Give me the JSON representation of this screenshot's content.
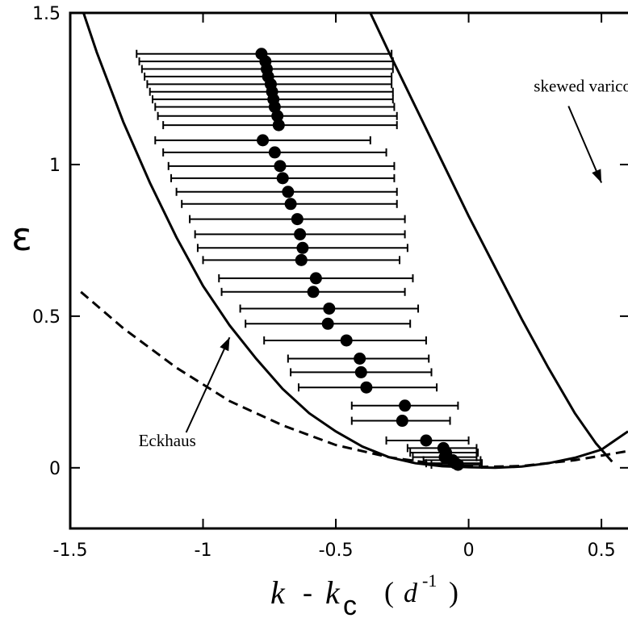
{
  "chart_data": {
    "type": "scatter",
    "xlabel_parts": {
      "k": "k",
      "dash": "-",
      "kc": "k",
      "c": "c",
      "paren_open": "(",
      "d": "d",
      "exp": "-1",
      "paren_close": ")"
    },
    "ylabel": "ε",
    "xlim": [
      -1.5,
      0.6
    ],
    "ylim": [
      -0.2,
      1.5
    ],
    "x_ticks": [
      {
        "value": -1.5,
        "label": "-1.5"
      },
      {
        "value": -1,
        "label": "-1"
      },
      {
        "value": -0.5,
        "label": "-0.5"
      },
      {
        "value": 0,
        "label": "0"
      },
      {
        "value": 0.5,
        "label": "0.5"
      }
    ],
    "y_ticks": [
      {
        "value": 0,
        "label": "0"
      },
      {
        "value": 0.5,
        "label": "0.5"
      },
      {
        "value": 1,
        "label": "1"
      },
      {
        "value": 1.5,
        "label": "1.5"
      }
    ],
    "points": [
      {
        "x": -0.78,
        "y": 1.365,
        "xmin": -1.25,
        "xmax": -0.29
      },
      {
        "x": -0.765,
        "y": 1.34,
        "xmin": -1.24,
        "xmax": -0.285
      },
      {
        "x": -0.76,
        "y": 1.315,
        "xmin": -1.23,
        "xmax": -0.285
      },
      {
        "x": -0.755,
        "y": 1.29,
        "xmin": -1.22,
        "xmax": -0.29
      },
      {
        "x": -0.745,
        "y": 1.265,
        "xmin": -1.21,
        "xmax": -0.29
      },
      {
        "x": -0.74,
        "y": 1.24,
        "xmin": -1.2,
        "xmax": -0.285
      },
      {
        "x": -0.735,
        "y": 1.215,
        "xmin": -1.19,
        "xmax": -0.285
      },
      {
        "x": -0.73,
        "y": 1.19,
        "xmin": -1.18,
        "xmax": -0.28
      },
      {
        "x": -0.72,
        "y": 1.16,
        "xmin": -1.17,
        "xmax": -0.27
      },
      {
        "x": -0.715,
        "y": 1.13,
        "xmin": -1.15,
        "xmax": -0.27
      },
      {
        "x": -0.775,
        "y": 1.08,
        "xmin": -1.18,
        "xmax": -0.37
      },
      {
        "x": -0.73,
        "y": 1.04,
        "xmin": -1.15,
        "xmax": -0.31
      },
      {
        "x": -0.71,
        "y": 0.995,
        "xmin": -1.13,
        "xmax": -0.28
      },
      {
        "x": -0.7,
        "y": 0.955,
        "xmin": -1.12,
        "xmax": -0.28
      },
      {
        "x": -0.68,
        "y": 0.91,
        "xmin": -1.1,
        "xmax": -0.27
      },
      {
        "x": -0.67,
        "y": 0.87,
        "xmin": -1.08,
        "xmax": -0.27
      },
      {
        "x": -0.645,
        "y": 0.82,
        "xmin": -1.05,
        "xmax": -0.24
      },
      {
        "x": -0.635,
        "y": 0.77,
        "xmin": -1.03,
        "xmax": -0.24
      },
      {
        "x": -0.625,
        "y": 0.725,
        "xmin": -1.02,
        "xmax": -0.23
      },
      {
        "x": -0.63,
        "y": 0.685,
        "xmin": -1.0,
        "xmax": -0.26
      },
      {
        "x": -0.575,
        "y": 0.625,
        "xmin": -0.94,
        "xmax": -0.21
      },
      {
        "x": -0.585,
        "y": 0.58,
        "xmin": -0.93,
        "xmax": -0.24
      },
      {
        "x": -0.525,
        "y": 0.525,
        "xmin": -0.86,
        "xmax": -0.19
      },
      {
        "x": -0.53,
        "y": 0.475,
        "xmin": -0.84,
        "xmax": -0.22
      },
      {
        "x": -0.46,
        "y": 0.42,
        "xmin": -0.77,
        "xmax": -0.16
      },
      {
        "x": -0.41,
        "y": 0.36,
        "xmin": -0.68,
        "xmax": -0.15
      },
      {
        "x": -0.405,
        "y": 0.315,
        "xmin": -0.67,
        "xmax": -0.14
      },
      {
        "x": -0.385,
        "y": 0.265,
        "xmin": -0.64,
        "xmax": -0.12
      },
      {
        "x": -0.24,
        "y": 0.205,
        "xmin": -0.44,
        "xmax": -0.04
      },
      {
        "x": -0.25,
        "y": 0.155,
        "xmin": -0.44,
        "xmax": -0.07
      },
      {
        "x": -0.16,
        "y": 0.09,
        "xmin": -0.31,
        "xmax": 0.0
      },
      {
        "x": -0.095,
        "y": 0.065,
        "xmin": -0.23,
        "xmax": 0.03
      },
      {
        "x": -0.085,
        "y": 0.05,
        "xmin": -0.22,
        "xmax": 0.035
      },
      {
        "x": -0.09,
        "y": 0.035,
        "xmin": -0.21,
        "xmax": 0.03
      },
      {
        "x": -0.06,
        "y": 0.025,
        "xmin": -0.17,
        "xmax": 0.045
      },
      {
        "x": -0.05,
        "y": 0.015,
        "xmin": -0.16,
        "xmax": 0.05
      },
      {
        "x": -0.04,
        "y": 0.01,
        "xmin": -0.14,
        "xmax": 0.05
      }
    ],
    "curves": [
      {
        "name": "Eckhaus",
        "style": "solid",
        "x": [
          -1.45,
          -1.4,
          -1.3,
          -1.2,
          -1.1,
          -1.0,
          -0.9,
          -0.8,
          -0.7,
          -0.6,
          -0.5,
          -0.4,
          -0.3,
          -0.2,
          -0.1,
          0.0,
          0.1,
          0.2,
          0.3,
          0.4,
          0.5,
          0.6
        ],
        "y": [
          1.5,
          1.37,
          1.14,
          0.94,
          0.76,
          0.6,
          0.47,
          0.36,
          0.26,
          0.18,
          0.12,
          0.07,
          0.035,
          0.015,
          0.005,
          0.002,
          0.0,
          0.004,
          0.015,
          0.033,
          0.06,
          0.12
        ]
      },
      {
        "name": "dashed",
        "style": "dashed",
        "x": [
          -1.46,
          -1.3,
          -1.1,
          -0.9,
          -0.7,
          -0.5,
          -0.3,
          -0.1,
          0.05,
          0.2,
          0.4,
          0.6
        ],
        "y": [
          0.58,
          0.46,
          0.33,
          0.22,
          0.14,
          0.075,
          0.035,
          0.01,
          0.003,
          0.006,
          0.025,
          0.055
        ]
      },
      {
        "name": "skewed varicose",
        "style": "solid",
        "x": [
          -0.37,
          -0.3,
          -0.2,
          -0.1,
          0.0,
          0.1,
          0.2,
          0.3,
          0.4,
          0.48,
          0.54
        ],
        "y": [
          1.5,
          1.37,
          1.19,
          1.01,
          0.83,
          0.66,
          0.49,
          0.33,
          0.18,
          0.08,
          0.02
        ]
      }
    ],
    "annotations": [
      {
        "text": "skewed varicose",
        "anchor_x": 0.3,
        "anchor_y": 1.23,
        "target_x": 0.5,
        "target_y": 0.94
      },
      {
        "text": "Eckhaus",
        "anchor_x": -1.1,
        "anchor_y": 0.09,
        "target_x": -0.9,
        "target_y": 0.43
      }
    ],
    "grid": false
  }
}
